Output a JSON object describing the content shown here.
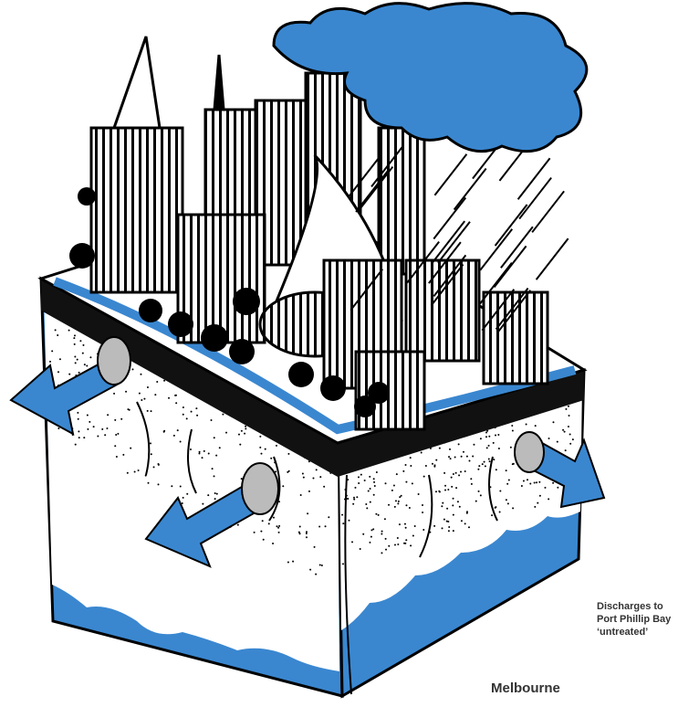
{
  "labels": {
    "discharge": [
      "Discharges to",
      "Port Phillip Bay",
      "‘untreated’"
    ],
    "city": "Melbourne"
  }
}
